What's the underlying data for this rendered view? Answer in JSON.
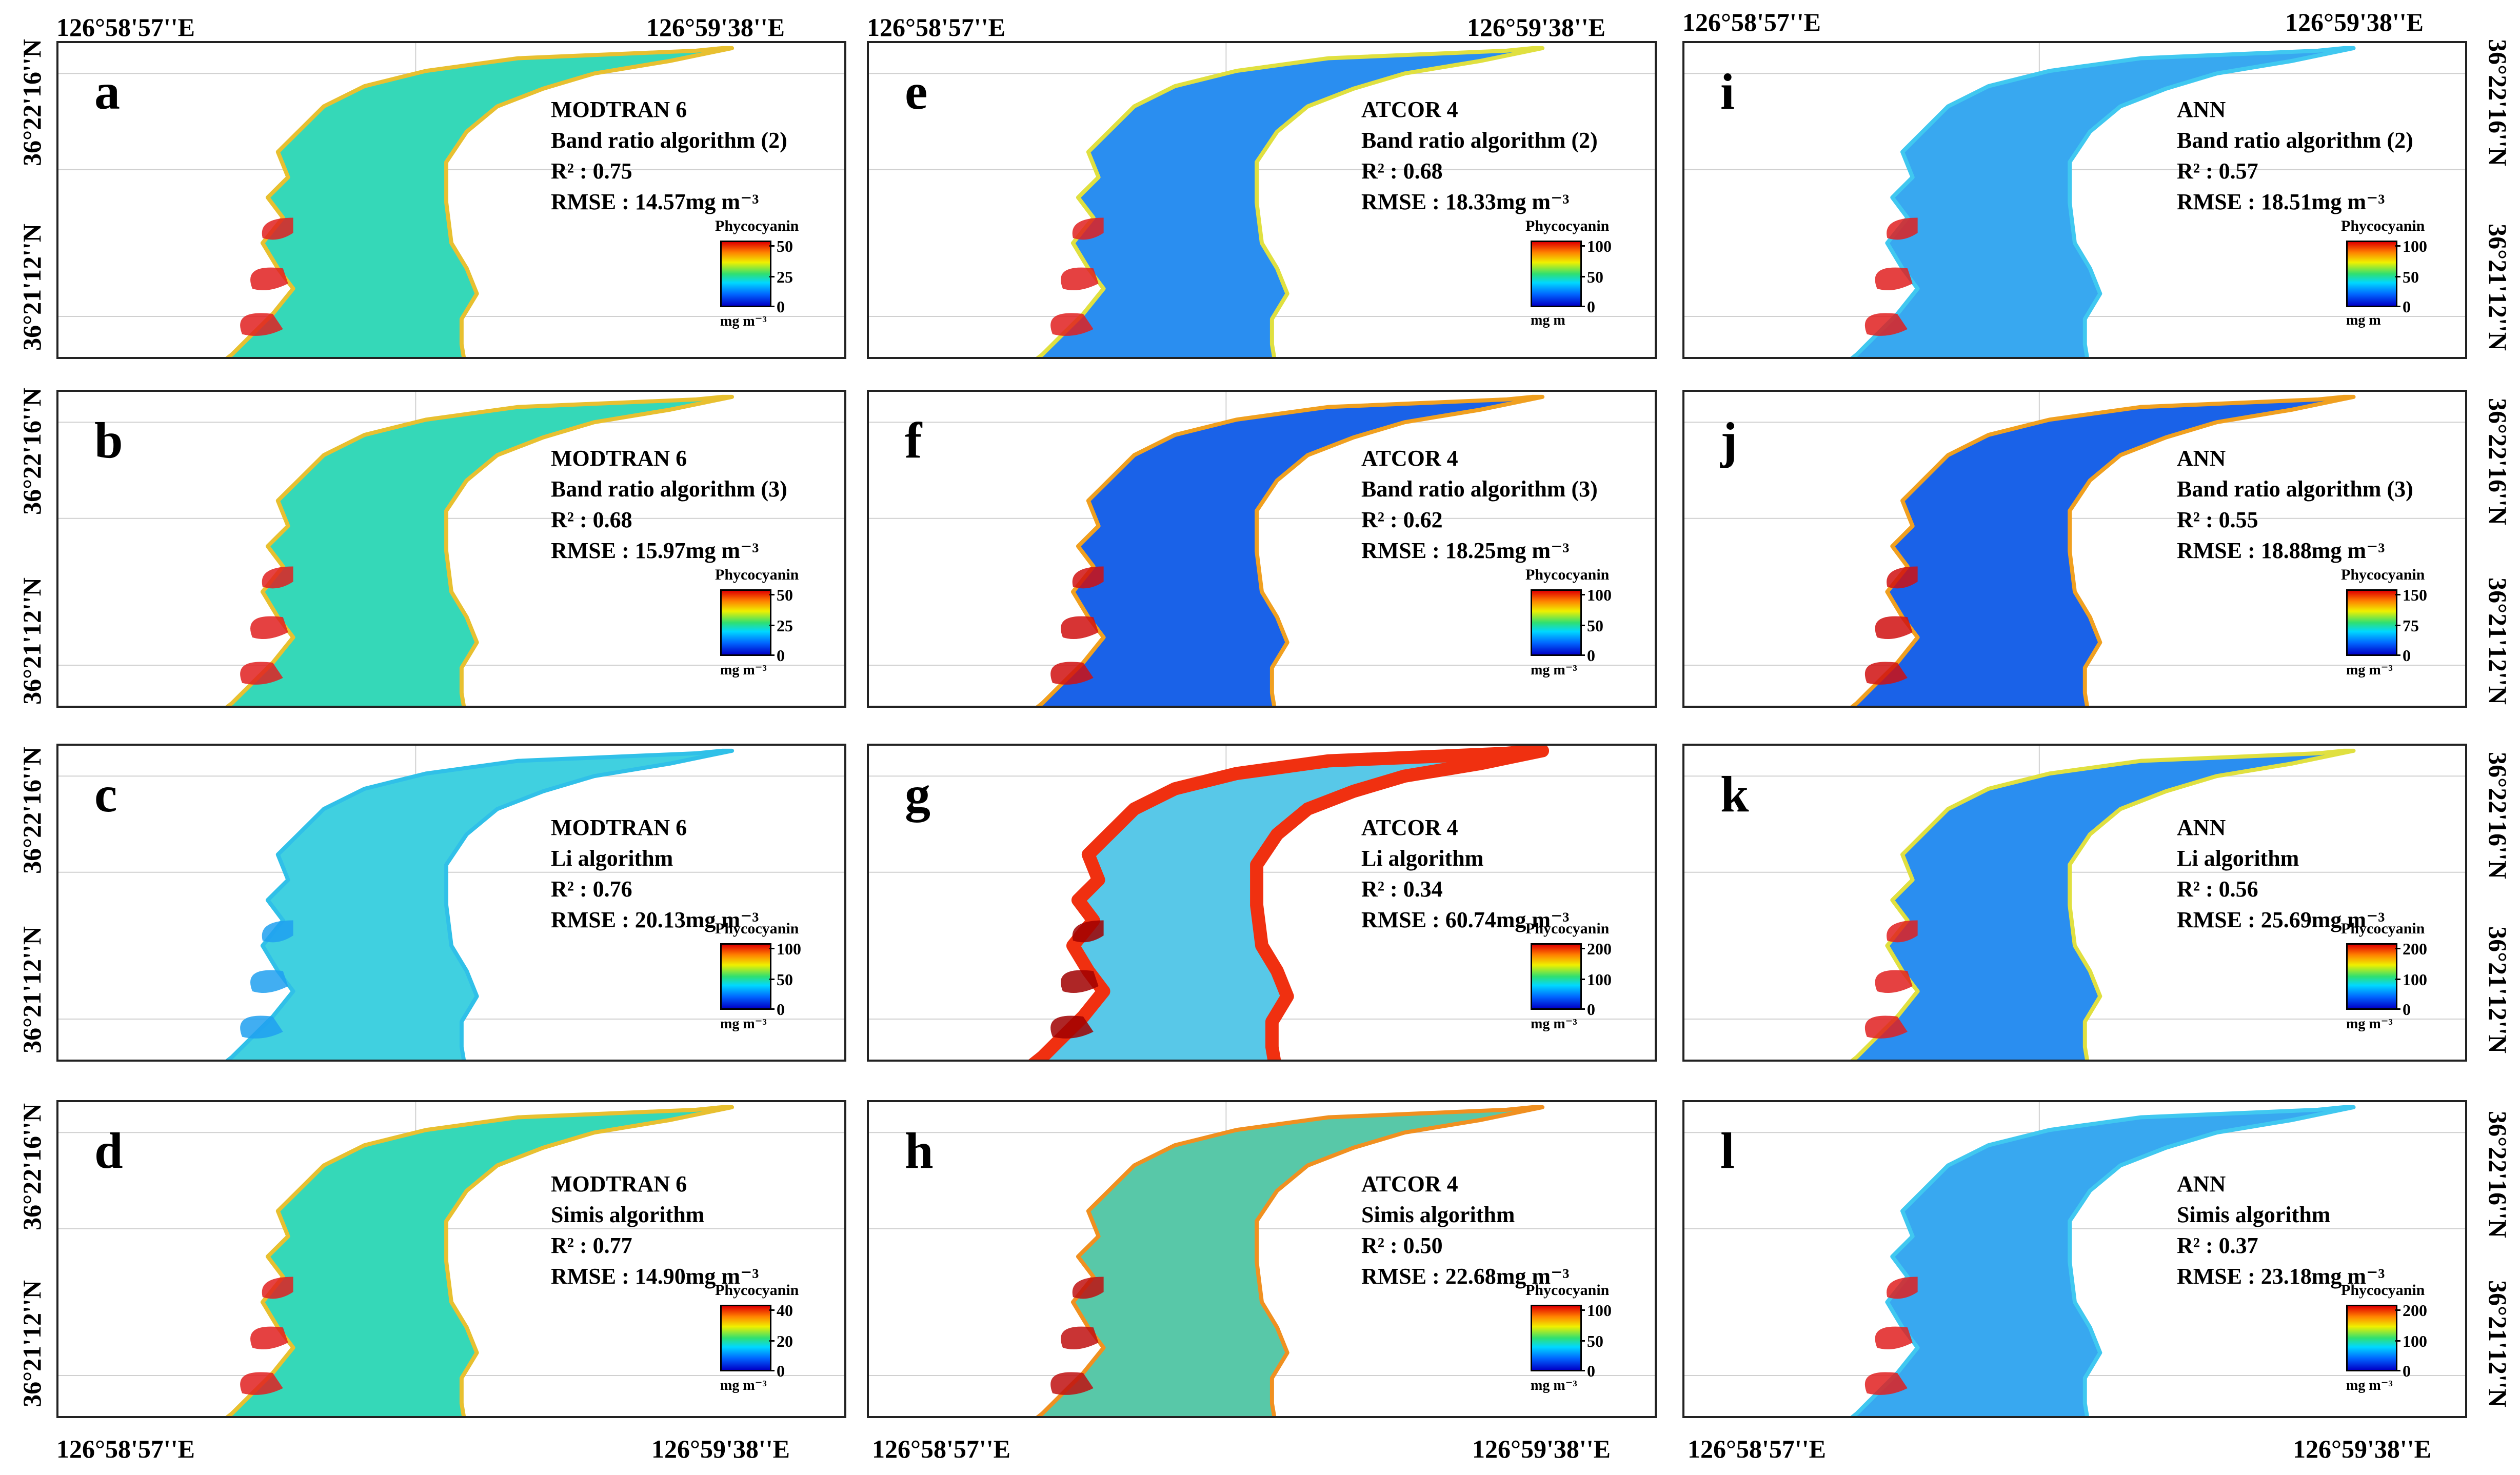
{
  "coords": {
    "lon_west": "126°58'57''E",
    "lon_east": "126°59'38''E",
    "lat_north": "36°22'16''N",
    "lat_south": "36°21'12''N"
  },
  "legend_title": "Phycocyanin",
  "panels": [
    {
      "letter": "a",
      "model": "MODTRAN 6",
      "algorithm": "Band ratio algorithm (2)",
      "r2": "R² : 0.75",
      "rmse": "RMSE : 14.57mg m⁻³",
      "ticks": [
        "50",
        "25",
        "0"
      ],
      "unit": "mg m⁻³",
      "palette": "green"
    },
    {
      "letter": "b",
      "model": "MODTRAN 6",
      "algorithm": "Band ratio algorithm (3)",
      "r2": "R² : 0.68",
      "rmse": "RMSE : 15.97mg m⁻³",
      "ticks": [
        "50",
        "25",
        "0"
      ],
      "unit": "mg m⁻³",
      "palette": "green"
    },
    {
      "letter": "c",
      "model": "MODTRAN 6",
      "algorithm": "Li algorithm",
      "r2": "R² : 0.76",
      "rmse": "RMSE : 20.13mg m⁻³",
      "ticks": [
        "100",
        "50",
        "0"
      ],
      "unit": "mg m⁻³",
      "palette": "cyan"
    },
    {
      "letter": "d",
      "model": "MODTRAN 6",
      "algorithm": "Simis algorithm",
      "r2": "R² : 0.77",
      "rmse": "RMSE : 14.90mg m⁻³",
      "ticks": [
        "40",
        "20",
        "0"
      ],
      "unit": "mg m⁻³",
      "palette": "green"
    },
    {
      "letter": "e",
      "model": "ATCOR 4",
      "algorithm": "Band ratio algorithm (2)",
      "r2": "R² : 0.68",
      "rmse": "RMSE : 18.33mg m⁻³",
      "ticks": [
        "100",
        "50",
        "0"
      ],
      "unit": "mg m",
      "palette": "blue"
    },
    {
      "letter": "f",
      "model": "ATCOR 4",
      "algorithm": "Band ratio algorithm (3)",
      "r2": "R² : 0.62",
      "rmse": "RMSE : 18.25mg m⁻³",
      "ticks": [
        "100",
        "50",
        "0"
      ],
      "unit": "mg m⁻³",
      "palette": "darkblue"
    },
    {
      "letter": "g",
      "model": "ATCOR 4",
      "algorithm": "Li algorithm",
      "r2": "R² : 0.34",
      "rmse": "RMSE : 60.74mg m⁻³",
      "ticks": [
        "200",
        "100",
        "0"
      ],
      "unit": "mg m⁻³",
      "palette": "hot"
    },
    {
      "letter": "h",
      "model": "ATCOR 4",
      "algorithm": "Simis algorithm",
      "r2": "R² : 0.50",
      "rmse": "RMSE : 22.68mg m⁻³",
      "ticks": [
        "100",
        "50",
        "0"
      ],
      "unit": "mg m⁻³",
      "palette": "mixed"
    },
    {
      "letter": "i",
      "model": "ANN",
      "algorithm": "Band ratio algorithm (2)",
      "r2": "R² : 0.57",
      "rmse": "RMSE : 18.51mg m⁻³",
      "ticks": [
        "100",
        "50",
        "0"
      ],
      "unit": "mg m",
      "palette": "lightblue"
    },
    {
      "letter": "j",
      "model": "ANN",
      "algorithm": "Band ratio algorithm (3)",
      "r2": "R² : 0.55",
      "rmse": "RMSE : 18.88mg m⁻³",
      "ticks": [
        "150",
        "75",
        "0"
      ],
      "unit": "mg m⁻³",
      "palette": "darkblue"
    },
    {
      "letter": "k",
      "model": "ANN",
      "algorithm": "Li algorithm",
      "r2": "R² : 0.56",
      "rmse": "RMSE : 25.69mg m⁻³",
      "ticks": [
        "200",
        "100",
        "0"
      ],
      "unit": "mg m⁻³",
      "palette": "blue"
    },
    {
      "letter": "l",
      "model": "ANN",
      "algorithm": "Simis algorithm",
      "r2": "R² : 0.37",
      "rmse": "RMSE : 23.18mg m⁻³",
      "ticks": [
        "200",
        "100",
        "0"
      ],
      "unit": "mg m⁻³",
      "palette": "lightblue"
    }
  ],
  "palettes": {
    "green": {
      "body": "#35d8b8",
      "edge": "#e8c030",
      "accent": "#e02020"
    },
    "cyan": {
      "body": "#40d0e0",
      "edge": "#30c0e8",
      "accent": "#20a0f0"
    },
    "blue": {
      "body": "#2a8ef0",
      "edge": "#e0e040",
      "accent": "#e02020"
    },
    "darkblue": {
      "body": "#1a62e8",
      "edge": "#f0a020",
      "accent": "#d01010"
    },
    "hot": {
      "body": "#58c8e8",
      "edge": "#f03010",
      "accent": "#a00000"
    },
    "mixed": {
      "body": "#58c8a8",
      "edge": "#f09020",
      "accent": "#c01010"
    },
    "lightblue": {
      "body": "#38a8f0",
      "edge": "#40c8f0",
      "accent": "#e02020"
    }
  }
}
